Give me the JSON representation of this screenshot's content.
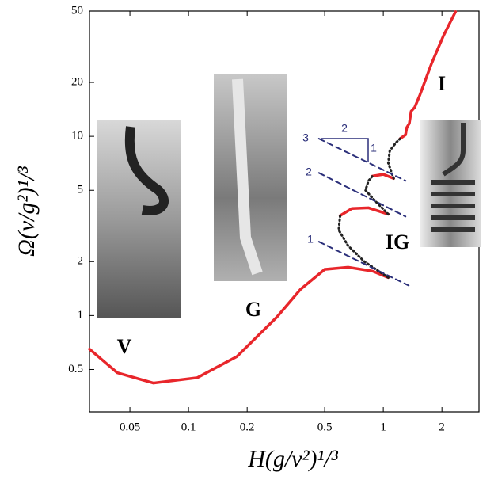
{
  "chart_data": {
    "type": "line",
    "xlabel": "H(g/ν²)¹/³",
    "ylabel": "Ω(ν/g²)¹/³",
    "log_x": true,
    "log_y": true,
    "xlim": [
      0.031,
      3.1
    ],
    "ylim": [
      0.29,
      50
    ],
    "xticks": [
      0.05,
      0.1,
      0.2,
      0.5,
      1,
      2
    ],
    "yticks": [
      0.5,
      1,
      2,
      5,
      10,
      20,
      50
    ],
    "series": [
      {
        "style": "solid",
        "color": "#e8262b",
        "x": [
          0.031,
          0.043,
          0.066,
          0.111,
          0.177,
          0.284,
          0.376,
          0.5,
          0.66,
          0.88,
          1.06,
          null,
          0.6,
          0.69,
          0.84,
          1.06,
          null,
          0.88,
          1.0,
          1.13,
          null,
          1.22,
          1.3,
          1.32,
          1.36,
          1.39,
          1.45,
          1.54,
          1.77,
          2.04,
          2.35
        ],
        "values": [
          0.65,
          0.48,
          0.42,
          0.45,
          0.59,
          0.98,
          1.4,
          1.81,
          1.86,
          1.77,
          1.63,
          null,
          3.61,
          3.96,
          3.99,
          3.68,
          null,
          6.0,
          6.14,
          5.82,
          null,
          9.7,
          10.2,
          11.2,
          11.8,
          13.8,
          14.5,
          17.0,
          25.5,
          36.6,
          49.6
        ]
      },
      {
        "style": "dotted",
        "color": "#222222",
        "x": [
          1.06,
          0.8,
          0.66,
          0.59,
          0.6,
          null,
          1.06,
          0.92,
          0.81,
          0.84,
          0.88,
          null,
          1.13,
          1.06,
          1.08,
          1.16,
          1.22
        ],
        "values": [
          1.63,
          2.0,
          2.45,
          3.0,
          3.61,
          null,
          3.68,
          4.3,
          5.0,
          5.65,
          6.0,
          null,
          5.82,
          7.1,
          8.3,
          9.2,
          9.7
        ]
      },
      {
        "style": "dashed",
        "color": "#2b2f7a",
        "x": [
          0.467,
          1.3
        ],
        "values": [
          9.7,
          5.65
        ]
      },
      {
        "style": "dashed",
        "color": "#2b2f7a",
        "x": [
          0.467,
          1.3
        ],
        "values": [
          6.25,
          3.57
        ]
      },
      {
        "style": "dashed",
        "color": "#2b2f7a",
        "x": [
          0.467,
          1.35
        ],
        "values": [
          2.58,
          1.47
        ]
      }
    ],
    "line_labels": [
      "3",
      "2",
      "1"
    ],
    "slope_labels": [
      "2",
      "1"
    ],
    "regions": [
      "V",
      "G",
      "IG",
      "I"
    ]
  }
}
